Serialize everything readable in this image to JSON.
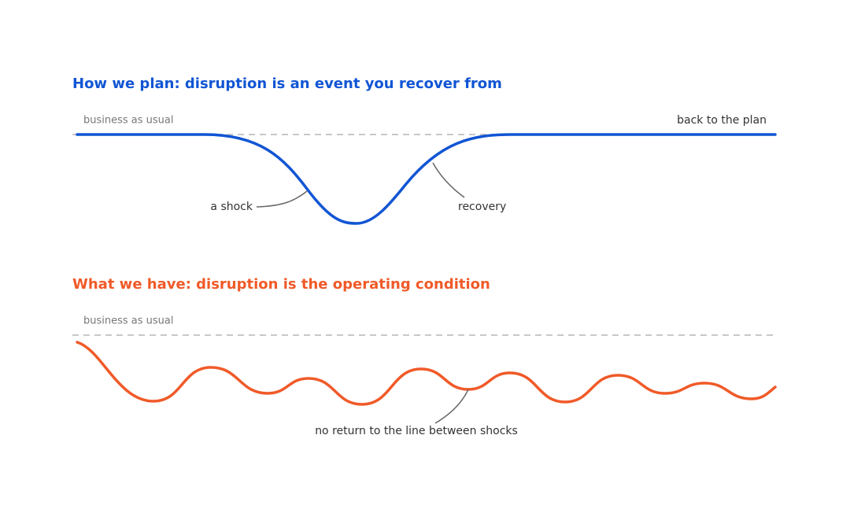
{
  "top": {
    "title": "How we plan: disruption is an event you recover from",
    "baseline_label": "business as usual",
    "end_label": "back to the plan",
    "shock_label": "a shock",
    "recovery_label": "recovery"
  },
  "bottom": {
    "title": "What we have: disruption is the operating condition",
    "baseline_label": "business as usual",
    "note": "no return to the line between shocks"
  }
}
